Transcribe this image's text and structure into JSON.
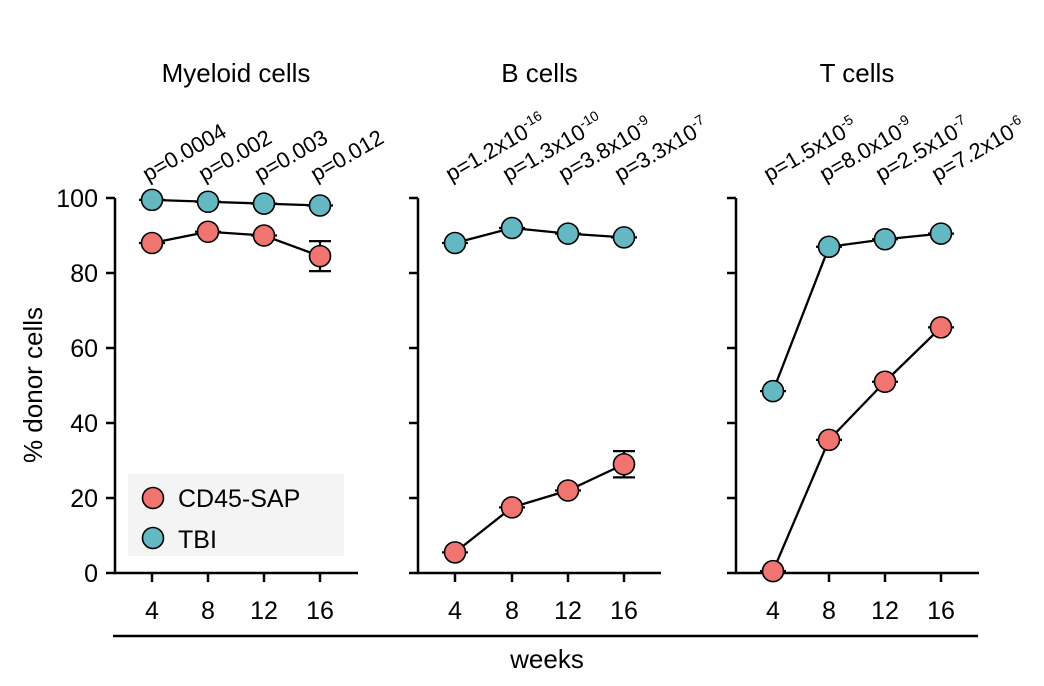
{
  "chart_data": [
    {
      "type": "line",
      "title": "Myeloid cells",
      "x": [
        4,
        8,
        12,
        16
      ],
      "series": [
        {
          "name": "CD45-SAP",
          "values": [
            88,
            91,
            90,
            84.5
          ],
          "errors": [
            1,
            1,
            1.5,
            4
          ],
          "color": "#f07570"
        },
        {
          "name": "TBI",
          "values": [
            99.5,
            99,
            98.5,
            98
          ],
          "errors": [
            0.5,
            0.5,
            0.5,
            0.5
          ],
          "color": "#63b8c2"
        }
      ],
      "p_values": [
        {
          "base": "p=0.0004",
          "exp": ""
        },
        {
          "base": "p=0.002",
          "exp": ""
        },
        {
          "base": "p=0.003",
          "exp": ""
        },
        {
          "base": "p=0.012",
          "exp": ""
        }
      ],
      "ylim": [
        0,
        100
      ]
    },
    {
      "type": "line",
      "title": "B cells",
      "x": [
        4,
        8,
        12,
        16
      ],
      "series": [
        {
          "name": "CD45-SAP",
          "values": [
            5.5,
            17.5,
            22,
            29
          ],
          "errors": [
            1,
            1.5,
            1.5,
            3.5
          ],
          "color": "#f07570"
        },
        {
          "name": "TBI",
          "values": [
            88,
            92,
            90.5,
            89.5
          ],
          "errors": [
            0.5,
            0.5,
            0.5,
            0.5
          ],
          "color": "#63b8c2"
        }
      ],
      "p_values": [
        {
          "base": "p=1.2x10",
          "exp": "-16"
        },
        {
          "base": "p=1.3x10",
          "exp": "-10"
        },
        {
          "base": "p=3.8x10",
          "exp": "-9"
        },
        {
          "base": "p=3.3x10",
          "exp": "-7"
        }
      ],
      "ylim": [
        0,
        100
      ]
    },
    {
      "type": "line",
      "title": "T cells",
      "x": [
        4,
        8,
        12,
        16
      ],
      "series": [
        {
          "name": "CD45-SAP",
          "values": [
            0.5,
            35.5,
            51,
            65.5
          ],
          "errors": [
            0.5,
            1.5,
            1.5,
            2
          ],
          "color": "#f07570"
        },
        {
          "name": "TBI",
          "values": [
            48.5,
            87,
            89,
            90.5
          ],
          "errors": [
            1,
            0.5,
            0.5,
            0.5
          ],
          "color": "#63b8c2"
        }
      ],
      "p_values": [
        {
          "base": "p=1.5x10",
          "exp": "-5"
        },
        {
          "base": "p=8.0x10",
          "exp": "-9"
        },
        {
          "base": "p=2.5x10",
          "exp": "-7"
        },
        {
          "base": "p=7.2x10",
          "exp": "-6"
        }
      ],
      "ylim": [
        0,
        100
      ]
    }
  ],
  "y_axis": {
    "label": "% donor cells",
    "ticks": [
      0,
      20,
      40,
      60,
      80,
      100
    ]
  },
  "x_axis": {
    "label": "weeks",
    "ticks": [
      "4",
      "8",
      "12",
      "16"
    ]
  },
  "legend": {
    "position": "bottom-left",
    "entries": [
      {
        "label": "CD45-SAP",
        "color": "#f07570"
      },
      {
        "label": "TBI",
        "color": "#63b8c2"
      }
    ]
  }
}
